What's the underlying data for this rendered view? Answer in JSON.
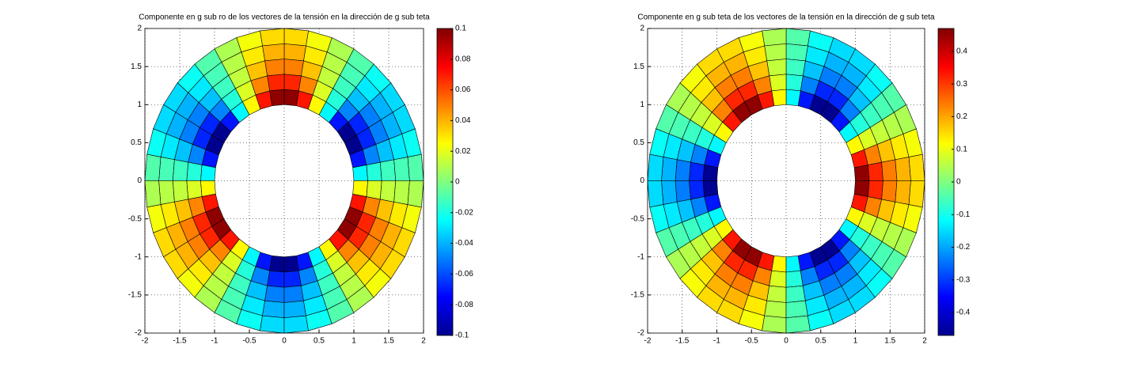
{
  "chart_data": [
    {
      "type": "polar_heatmap",
      "title": "Componente en g sub ro de los vectores de la tensión en la dirección de g sub teta",
      "xlim": [
        -2,
        2
      ],
      "ylim": [
        -2,
        2
      ],
      "xticks": [
        -2,
        -1.5,
        -1,
        -0.5,
        0,
        0.5,
        1,
        1.5,
        2
      ],
      "yticks": [
        -2,
        -1.5,
        -1,
        -0.5,
        0,
        0.5,
        1,
        1.5,
        2
      ],
      "grid": true,
      "colormap": "jet",
      "clim": [
        -0.1,
        0.1
      ],
      "cticks": [
        -0.1,
        -0.08,
        -0.06,
        -0.04,
        -0.02,
        0,
        0.02,
        0.04,
        0.06,
        0.08,
        0.1
      ],
      "r_edges": [
        1,
        1.2,
        1.4,
        1.6,
        1.8,
        2
      ],
      "theta_edges": [
        0,
        10,
        20,
        30,
        40,
        50,
        60,
        70,
        80,
        90,
        100,
        110,
        120,
        130,
        140,
        150,
        160,
        170,
        180,
        190,
        200,
        210,
        220,
        230,
        240,
        250,
        260,
        270,
        280,
        290,
        300,
        310,
        320,
        330,
        340,
        350,
        360
      ],
      "values": [
        [
          -0.026,
          -0.018,
          -0.013,
          -0.011,
          -0.009
        ],
        [
          -0.071,
          -0.049,
          -0.037,
          -0.029,
          -0.023
        ],
        [
          -0.097,
          -0.068,
          -0.05,
          -0.04,
          -0.032
        ],
        [
          -0.097,
          -0.068,
          -0.05,
          -0.04,
          -0.032
        ],
        [
          -0.071,
          -0.049,
          -0.037,
          -0.029,
          -0.023
        ],
        [
          -0.026,
          -0.018,
          -0.013,
          -0.011,
          -0.009
        ],
        [
          0.026,
          0.018,
          0.013,
          0.011,
          0.009
        ],
        [
          0.071,
          0.049,
          0.037,
          0.029,
          0.023
        ],
        [
          0.097,
          0.068,
          0.05,
          0.04,
          0.032
        ],
        [
          0.097,
          0.068,
          0.05,
          0.04,
          0.032
        ],
        [
          0.071,
          0.049,
          0.037,
          0.029,
          0.023
        ],
        [
          0.026,
          0.018,
          0.013,
          0.011,
          0.009
        ],
        [
          -0.026,
          -0.018,
          -0.013,
          -0.011,
          -0.009
        ],
        [
          -0.071,
          -0.049,
          -0.037,
          -0.029,
          -0.023
        ],
        [
          -0.097,
          -0.068,
          -0.05,
          -0.04,
          -0.032
        ],
        [
          -0.097,
          -0.068,
          -0.05,
          -0.04,
          -0.032
        ],
        [
          -0.071,
          -0.049,
          -0.037,
          -0.029,
          -0.023
        ],
        [
          -0.026,
          -0.018,
          -0.013,
          -0.011,
          -0.009
        ],
        [
          0.026,
          0.018,
          0.013,
          0.011,
          0.009
        ],
        [
          0.071,
          0.049,
          0.037,
          0.029,
          0.023
        ],
        [
          0.097,
          0.068,
          0.05,
          0.04,
          0.032
        ],
        [
          0.097,
          0.068,
          0.05,
          0.04,
          0.032
        ],
        [
          0.071,
          0.049,
          0.037,
          0.029,
          0.023
        ],
        [
          0.026,
          0.018,
          0.013,
          0.011,
          0.009
        ],
        [
          -0.026,
          -0.018,
          -0.013,
          -0.011,
          -0.009
        ],
        [
          -0.071,
          -0.049,
          -0.037,
          -0.029,
          -0.023
        ],
        [
          -0.097,
          -0.068,
          -0.05,
          -0.04,
          -0.032
        ],
        [
          -0.097,
          -0.068,
          -0.05,
          -0.04,
          -0.032
        ],
        [
          -0.071,
          -0.049,
          -0.037,
          -0.029,
          -0.023
        ],
        [
          -0.026,
          -0.018,
          -0.013,
          -0.011,
          -0.009
        ],
        [
          0.026,
          0.018,
          0.013,
          0.011,
          0.009
        ],
        [
          0.071,
          0.049,
          0.037,
          0.029,
          0.023
        ],
        [
          0.097,
          0.068,
          0.05,
          0.04,
          0.032
        ],
        [
          0.097,
          0.068,
          0.05,
          0.04,
          0.032
        ],
        [
          0.071,
          0.049,
          0.037,
          0.029,
          0.023
        ],
        [
          0.026,
          0.018,
          0.013,
          0.011,
          0.009
        ]
      ]
    },
    {
      "type": "polar_heatmap",
      "title": "Componente en g sub teta de los vectores de la tensión en la dirección de g sub teta",
      "xlim": [
        -2,
        2
      ],
      "ylim": [
        -2,
        2
      ],
      "xticks": [
        -2,
        -1.5,
        -1,
        -0.5,
        0,
        0.5,
        1,
        1.5,
        2
      ],
      "yticks": [
        -2,
        -1.5,
        -1,
        -0.5,
        0,
        0.5,
        1,
        1.5,
        2
      ],
      "grid": true,
      "colormap": "jet",
      "clim": [
        -0.47,
        0.47
      ],
      "cticks": [
        -0.4,
        -0.3,
        -0.2,
        -0.1,
        0,
        0.1,
        0.2,
        0.3,
        0.4
      ],
      "r_edges": [
        1,
        1.2,
        1.4,
        1.6,
        1.8,
        2
      ],
      "theta_edges": [
        0,
        10,
        20,
        30,
        40,
        50,
        60,
        70,
        80,
        90,
        100,
        110,
        120,
        130,
        140,
        150,
        160,
        170,
        180,
        190,
        200,
        210,
        220,
        230,
        240,
        250,
        260,
        270,
        280,
        290,
        300,
        310,
        320,
        330,
        340,
        350,
        360
      ],
      "values": [
        [
          0.454,
          0.318,
          0.236,
          0.186,
          0.15
        ],
        [
          0.332,
          0.233,
          0.173,
          0.136,
          0.11
        ],
        [
          0.122,
          0.085,
          0.063,
          0.05,
          0.04
        ],
        [
          -0.122,
          -0.085,
          -0.063,
          -0.05,
          -0.04
        ],
        [
          -0.332,
          -0.233,
          -0.173,
          -0.136,
          -0.11
        ],
        [
          -0.454,
          -0.318,
          -0.236,
          -0.186,
          -0.15
        ],
        [
          -0.454,
          -0.318,
          -0.236,
          -0.186,
          -0.15
        ],
        [
          -0.332,
          -0.233,
          -0.173,
          -0.136,
          -0.11
        ],
        [
          -0.122,
          -0.085,
          -0.063,
          -0.05,
          -0.04
        ],
        [
          0.122,
          0.085,
          0.063,
          0.05,
          0.04
        ],
        [
          0.332,
          0.233,
          0.173,
          0.136,
          0.11
        ],
        [
          0.454,
          0.318,
          0.236,
          0.186,
          0.15
        ],
        [
          0.454,
          0.318,
          0.236,
          0.186,
          0.15
        ],
        [
          0.332,
          0.233,
          0.173,
          0.136,
          0.11
        ],
        [
          0.122,
          0.085,
          0.063,
          0.05,
          0.04
        ],
        [
          -0.122,
          -0.085,
          -0.063,
          -0.05,
          -0.04
        ],
        [
          -0.332,
          -0.233,
          -0.173,
          -0.136,
          -0.11
        ],
        [
          -0.454,
          -0.318,
          -0.236,
          -0.186,
          -0.15
        ],
        [
          -0.454,
          -0.318,
          -0.236,
          -0.186,
          -0.15
        ],
        [
          -0.332,
          -0.233,
          -0.173,
          -0.136,
          -0.11
        ],
        [
          -0.122,
          -0.085,
          -0.063,
          -0.05,
          -0.04
        ],
        [
          0.122,
          0.085,
          0.063,
          0.05,
          0.04
        ],
        [
          0.332,
          0.233,
          0.173,
          0.136,
          0.11
        ],
        [
          0.454,
          0.318,
          0.236,
          0.186,
          0.15
        ],
        [
          0.454,
          0.318,
          0.236,
          0.186,
          0.15
        ],
        [
          0.332,
          0.233,
          0.173,
          0.136,
          0.11
        ],
        [
          0.122,
          0.085,
          0.063,
          0.05,
          0.04
        ],
        [
          -0.122,
          -0.085,
          -0.063,
          -0.05,
          -0.04
        ],
        [
          -0.332,
          -0.233,
          -0.173,
          -0.136,
          -0.11
        ],
        [
          -0.454,
          -0.318,
          -0.236,
          -0.186,
          -0.15
        ],
        [
          -0.454,
          -0.318,
          -0.236,
          -0.186,
          -0.15
        ],
        [
          -0.332,
          -0.233,
          -0.173,
          -0.136,
          -0.11
        ],
        [
          -0.122,
          -0.085,
          -0.063,
          -0.05,
          -0.04
        ],
        [
          0.122,
          0.085,
          0.063,
          0.05,
          0.04
        ],
        [
          0.332,
          0.233,
          0.173,
          0.136,
          0.11
        ],
        [
          0.454,
          0.318,
          0.236,
          0.186,
          0.15
        ]
      ]
    }
  ]
}
